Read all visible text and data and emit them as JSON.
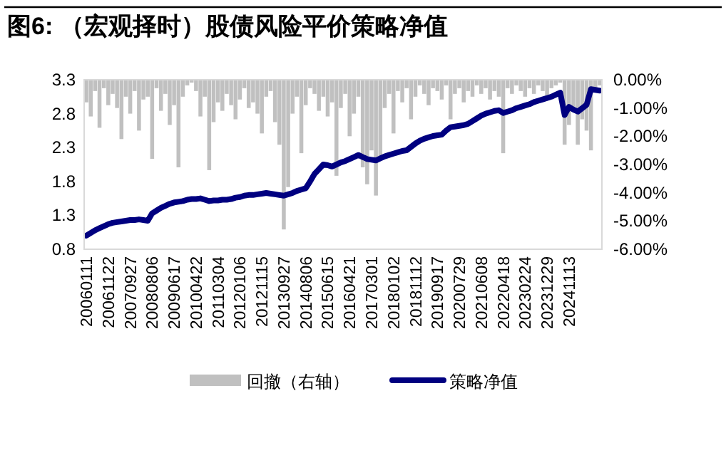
{
  "chart_data": {
    "type": "bar",
    "title": "图6: （宏观择时）股债风险平价策略净值",
    "categories": [
      "20060111",
      null,
      null,
      null,
      null,
      "20061122",
      null,
      null,
      null,
      null,
      "20070927",
      null,
      null,
      null,
      null,
      "20080806",
      null,
      null,
      null,
      null,
      "20090617",
      null,
      null,
      null,
      null,
      "20100422",
      null,
      null,
      null,
      null,
      "20110304",
      null,
      null,
      null,
      null,
      "20120106",
      null,
      null,
      null,
      null,
      "20121115",
      null,
      null,
      null,
      null,
      "20130927",
      null,
      null,
      null,
      null,
      "20140806",
      null,
      null,
      null,
      null,
      "20150615",
      null,
      null,
      null,
      null,
      "20160421",
      null,
      null,
      null,
      null,
      "20170301",
      null,
      null,
      null,
      null,
      "20180102",
      null,
      null,
      null,
      null,
      "20181112",
      null,
      null,
      null,
      null,
      "20190917",
      null,
      null,
      null,
      null,
      "20200729",
      null,
      null,
      null,
      null,
      "20210608",
      null,
      null,
      null,
      null,
      "20220418",
      null,
      null,
      null,
      null,
      "20230224",
      null,
      null,
      null,
      null,
      "20231229",
      null,
      null,
      null,
      null,
      "20241113",
      null,
      null,
      null,
      null,
      null,
      null,
      null
    ],
    "series": [
      {
        "name": "回撤（右轴）",
        "axis": "y2",
        "color": "#c0c0c0",
        "values": [
          -0.8,
          -1.3,
          -0.4,
          -1.7,
          -0.3,
          -0.9,
          -0.5,
          -1.0,
          -2.1,
          -0.6,
          -1.2,
          -0.4,
          -1.8,
          -0.7,
          -0.6,
          -2.8,
          -0.3,
          -1.1,
          -0.5,
          -1.6,
          -0.9,
          -3.1,
          -0.6,
          -0.2,
          -0.1,
          -0.4,
          -1.3,
          -0.6,
          -3.2,
          -1.5,
          -0.8,
          -1.1,
          -0.5,
          -0.9,
          -1.4,
          -0.7,
          -0.3,
          -1.0,
          -0.8,
          -1.2,
          -1.9,
          -0.6,
          -0.4,
          -1.5,
          -2.3,
          -5.3,
          -3.8,
          -1.2,
          -0.6,
          -2.6,
          -0.9,
          -0.3,
          -0.5,
          -1.1,
          -0.6,
          -1.3,
          -0.8,
          -3.4,
          -1.0,
          -0.5,
          -2.0,
          -1.2,
          -0.6,
          -3.1,
          -3.7,
          -2.5,
          -4.1,
          -2.8,
          -1.0,
          -0.5,
          -1.9,
          -0.4,
          -0.8,
          -0.3,
          -1.4,
          -0.6,
          -0.2,
          -0.5,
          -0.9,
          -0.3,
          -0.4,
          -0.7,
          -0.2,
          -1.4,
          -0.5,
          -0.3,
          -0.8,
          -0.4,
          -0.6,
          -0.2,
          -0.5,
          -0.3,
          -0.7,
          -0.4,
          -0.6,
          -2.6,
          -0.3,
          -0.5,
          -0.2,
          -0.4,
          -0.6,
          -0.3,
          -0.5,
          -0.2,
          -0.4,
          -0.7,
          -0.3,
          -0.2,
          -0.1,
          -2.3,
          -1.6,
          -1.0,
          -2.3,
          -1.4,
          -1.8,
          -2.5,
          -0.3,
          -0.2
        ]
      },
      {
        "name": "策略净值",
        "type": "line",
        "color": "#000080",
        "values": [
          1.0,
          1.04,
          1.08,
          1.11,
          1.14,
          1.17,
          1.19,
          1.2,
          1.21,
          1.22,
          1.23,
          1.23,
          1.24,
          1.23,
          1.22,
          1.33,
          1.37,
          1.41,
          1.44,
          1.47,
          1.49,
          1.5,
          1.51,
          1.53,
          1.54,
          1.54,
          1.55,
          1.53,
          1.51,
          1.52,
          1.52,
          1.53,
          1.53,
          1.54,
          1.56,
          1.57,
          1.59,
          1.6,
          1.6,
          1.61,
          1.62,
          1.63,
          1.62,
          1.61,
          1.6,
          1.59,
          1.61,
          1.63,
          1.66,
          1.68,
          1.7,
          1.8,
          1.91,
          1.98,
          2.05,
          2.04,
          2.02,
          2.05,
          2.08,
          2.1,
          2.13,
          2.16,
          2.19,
          2.16,
          2.13,
          2.12,
          2.11,
          2.14,
          2.17,
          2.19,
          2.21,
          2.23,
          2.25,
          2.26,
          2.31,
          2.36,
          2.4,
          2.43,
          2.45,
          2.47,
          2.48,
          2.49,
          2.55,
          2.6,
          2.61,
          2.62,
          2.63,
          2.65,
          2.69,
          2.73,
          2.77,
          2.8,
          2.82,
          2.84,
          2.85,
          2.81,
          2.83,
          2.85,
          2.88,
          2.9,
          2.92,
          2.94,
          2.97,
          2.99,
          3.01,
          3.03,
          3.05,
          3.08,
          3.11,
          2.78,
          2.9,
          2.86,
          2.83,
          2.88,
          2.93,
          3.16,
          3.15,
          3.14
        ]
      }
    ],
    "ylim": [
      0.8,
      3.3
    ],
    "yticks": [
      0.8,
      1.3,
      1.8,
      2.3,
      2.8,
      3.3
    ],
    "y2lim": [
      -6,
      0
    ],
    "y2ticks": [
      {
        "value": 0,
        "label": "0.00%"
      },
      {
        "value": -1,
        "label": "-1.00%"
      },
      {
        "value": -2,
        "label": "-2.00%"
      },
      {
        "value": -3,
        "label": "-3.00%"
      },
      {
        "value": -4,
        "label": "-4.00%"
      },
      {
        "value": -5,
        "label": "-5.00%"
      },
      {
        "value": -6,
        "label": "-6.00%"
      }
    ],
    "legend": "bottom"
  }
}
